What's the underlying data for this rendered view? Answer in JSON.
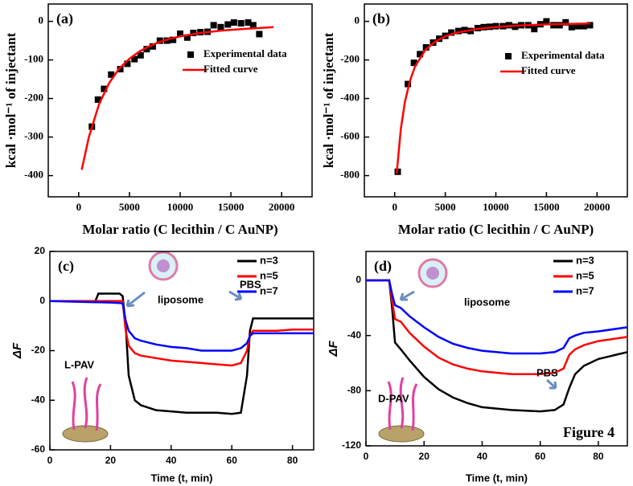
{
  "chart_data": [
    {
      "type": "scatter",
      "title": "(a)",
      "x_label": "Molar ratio (C lecithin / C AuNP)",
      "y_label": "kcal ·mol⁻¹ of injectant",
      "xlim": [
        -3000,
        23000
      ],
      "ylim": [
        -455,
        45
      ],
      "xticks": [
        0,
        5000,
        10000,
        15000,
        20000
      ],
      "yticks": [
        -400,
        -300,
        -200,
        -100,
        0
      ],
      "series": [
        {
          "name": "Experimental data",
          "mode": "markers",
          "color": "#000000",
          "x": [
            1300,
            1900,
            2500,
            3200,
            4100,
            4800,
            5500,
            6100,
            6700,
            7300,
            8000,
            8700,
            9300,
            10000,
            10700,
            11300,
            12000,
            12700,
            13300,
            14000,
            14700,
            15300,
            16000,
            16700,
            17200,
            17800
          ],
          "values": [
            -273,
            -203,
            -175,
            -138,
            -124,
            -110,
            -98,
            -88,
            -72,
            -65,
            -50,
            -50,
            -48,
            -32,
            -42,
            -30,
            -28,
            -27,
            -10,
            -15,
            -8,
            -3,
            -5,
            -3,
            -10,
            -33
          ]
        },
        {
          "name": "Fitted curve",
          "mode": "line",
          "color": "#ff0000",
          "x": [
            300,
            1000,
            2000,
            3000,
            4000,
            5000,
            6000,
            7000,
            8000,
            9000,
            10000,
            12000,
            14000,
            16000,
            18000,
            19200
          ],
          "values": [
            -385,
            -300,
            -215,
            -160,
            -122,
            -97,
            -78,
            -64,
            -53,
            -45,
            -39,
            -30,
            -24,
            -20,
            -17,
            -15
          ]
        }
      ]
    },
    {
      "type": "scatter",
      "title": "(b)",
      "x_label": "Molar ratio (C lecithin / C AuNP)",
      "y_label": "kcal ·mol⁻¹ of injectant",
      "xlim": [
        -3000,
        23000
      ],
      "ylim": [
        -910,
        90
      ],
      "xticks": [
        0,
        5000,
        10000,
        15000,
        20000
      ],
      "yticks": [
        -800,
        -600,
        -400,
        -200,
        0
      ],
      "series": [
        {
          "name": "Experimental data",
          "mode": "markers",
          "color": "#000000",
          "x": [
            300,
            1300,
            1900,
            2500,
            3100,
            3800,
            4400,
            5000,
            5600,
            6300,
            6900,
            7500,
            8200,
            8800,
            9400,
            10000,
            10700,
            11300,
            11900,
            12500,
            13200,
            13800,
            14400,
            15000,
            15700,
            16300,
            16900,
            17500,
            18100,
            18700,
            19300
          ],
          "values": [
            -780,
            -325,
            -215,
            -170,
            -135,
            -110,
            -90,
            -75,
            -58,
            -50,
            -45,
            -50,
            -35,
            -30,
            -28,
            -25,
            -25,
            -20,
            -28,
            -20,
            -20,
            -40,
            -15,
            0,
            -20,
            -20,
            -5,
            -30,
            -25,
            -25,
            -20
          ]
        },
        {
          "name": "Fitted curve",
          "mode": "line",
          "color": "#ff0000",
          "x": [
            200,
            600,
            1000,
            1500,
            2000,
            3000,
            4000,
            5000,
            6000,
            8000,
            10000,
            12000,
            15000,
            19300
          ],
          "values": [
            -790,
            -560,
            -420,
            -310,
            -235,
            -150,
            -105,
            -78,
            -60,
            -40,
            -29,
            -22,
            -16,
            -11
          ]
        }
      ]
    },
    {
      "type": "line",
      "title": "(c)",
      "x_label": "Time (t, min)",
      "y_label": "ΔF",
      "xlim": [
        0,
        87
      ],
      "ylim": [
        -60,
        20
      ],
      "xticks": [
        0,
        20,
        40,
        60,
        80
      ],
      "yticks": [
        -60,
        -40,
        -20,
        0,
        20
      ],
      "annotations": [
        "liposome",
        "PBS",
        "L-PAV"
      ],
      "x": [
        0,
        10,
        15,
        16,
        20,
        23,
        24,
        25,
        26,
        28,
        30,
        35,
        40,
        45,
        50,
        55,
        60,
        63,
        65,
        66,
        67,
        70,
        75,
        80,
        87
      ],
      "series": [
        {
          "name": "n=3",
          "color": "#000000",
          "values": [
            0,
            0,
            0,
            3,
            3,
            3,
            2,
            -10,
            -30,
            -40,
            -42,
            -44,
            -44.5,
            -45,
            -45,
            -45,
            -45.5,
            -45,
            -30,
            -12,
            -7,
            -7,
            -7,
            -7,
            -7
          ]
        },
        {
          "name": "n=5",
          "color": "#ff0000",
          "values": [
            0,
            0,
            0,
            0,
            0,
            0,
            0,
            -12,
            -18,
            -21,
            -22,
            -23,
            -24,
            -24.5,
            -25,
            -25.5,
            -26,
            -25,
            -20,
            -14,
            -12,
            -12,
            -12,
            -11.5,
            -11.5
          ]
        },
        {
          "name": "n=7",
          "color": "#0000ff",
          "values": [
            0,
            -0.3,
            -0.5,
            -0.5,
            -0.6,
            -0.8,
            -1,
            -8,
            -12,
            -15,
            -16,
            -17.5,
            -18.5,
            -19,
            -20,
            -20,
            -20,
            -19,
            -17,
            -14,
            -13,
            -13,
            -13,
            -13,
            -13
          ]
        }
      ]
    },
    {
      "type": "line",
      "title": "(d)",
      "x_label": "Time (t, min)",
      "y_label": "ΔF",
      "xlim": [
        0,
        90
      ],
      "ylim": [
        -120,
        21
      ],
      "xticks": [
        0,
        20,
        40,
        60,
        80
      ],
      "yticks": [
        -120,
        -80,
        -40,
        0
      ],
      "annotations": [
        "liposome",
        "PBS",
        "D-PAV",
        "Figure 4"
      ],
      "x": [
        0,
        8,
        9,
        10,
        12,
        15,
        20,
        25,
        30,
        35,
        40,
        50,
        60,
        65,
        68,
        70,
        72,
        75,
        80,
        90
      ],
      "series": [
        {
          "name": "n=3",
          "color": "#000000",
          "values": [
            0,
            0,
            -20,
            -45,
            -50,
            -58,
            -70,
            -79,
            -85,
            -89,
            -92,
            -94,
            -95,
            -94,
            -90,
            -78,
            -68,
            -62,
            -57,
            -52
          ]
        },
        {
          "name": "n=5",
          "color": "#ff0000",
          "values": [
            0,
            0,
            -15,
            -28,
            -30,
            -38,
            -48,
            -56,
            -61,
            -64,
            -66,
            -68,
            -68,
            -67,
            -64,
            -54,
            -50,
            -47,
            -44,
            -41
          ]
        },
        {
          "name": "n=7",
          "color": "#0000ff",
          "values": [
            0,
            0,
            -10,
            -18,
            -20,
            -26,
            -34,
            -41,
            -46,
            -49,
            -51,
            -53,
            -53,
            -52,
            -49,
            -42,
            -40,
            -38,
            -37,
            -34
          ]
        }
      ]
    }
  ]
}
